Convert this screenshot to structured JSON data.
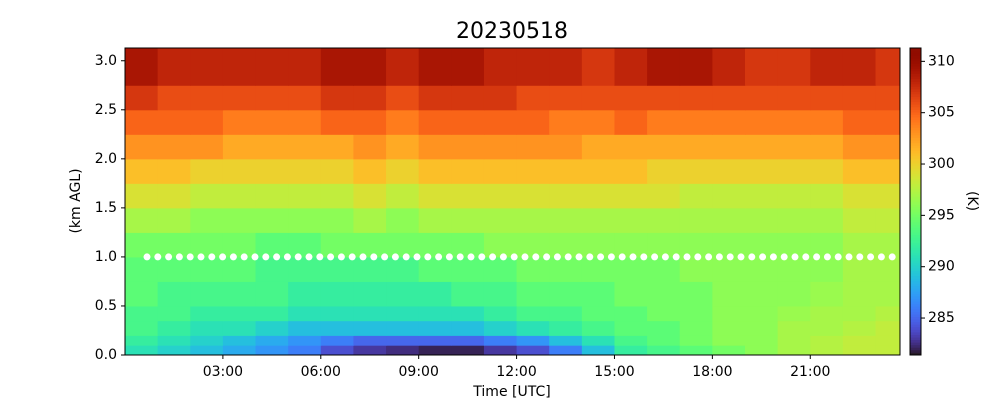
{
  "chart_data": {
    "type": "heatmap",
    "title": "20230518",
    "x_label": "Time [UTC]",
    "y_label": "(km AGL)",
    "colorbar_label": "(K)",
    "colormap": "turbo",
    "x_bins": [
      0,
      1,
      2,
      3,
      4,
      5,
      6,
      7,
      8,
      9,
      10,
      11,
      12,
      13,
      14,
      15,
      16,
      17,
      18,
      19,
      20,
      21,
      22,
      23,
      23.75
    ],
    "y_bins": [
      0,
      0.1,
      0.2,
      0.35,
      0.5,
      0.75,
      1.0,
      1.25,
      1.5,
      1.75,
      2.0,
      2.25,
      2.5,
      2.75,
      3.13
    ],
    "z": [
      [
        291,
        290,
        289,
        288,
        287,
        286,
        284,
        283,
        282.5,
        282,
        282,
        283,
        284,
        286,
        289,
        292,
        293,
        294,
        295,
        296,
        297,
        297.5,
        298,
        298
      ],
      [
        292,
        291,
        290,
        289,
        288,
        287,
        286,
        285,
        285,
        285,
        285,
        286,
        287,
        289,
        291,
        293,
        294,
        295,
        296,
        296,
        297,
        297.5,
        298,
        298
      ],
      [
        293,
        292,
        291,
        291,
        290,
        289,
        289,
        289,
        289,
        289,
        289,
        290,
        291,
        292,
        293,
        294,
        294,
        295,
        296,
        296,
        297,
        297,
        297.5,
        298
      ],
      [
        293,
        293,
        292,
        292,
        292,
        291,
        291,
        291,
        291,
        291,
        291,
        292,
        293,
        293,
        294,
        294,
        295,
        295,
        296,
        296,
        296.5,
        297,
        297,
        297.5
      ],
      [
        294,
        293,
        293,
        293,
        293,
        292,
        292,
        292,
        292,
        292,
        293,
        293,
        294,
        294,
        294,
        295,
        295,
        295,
        296,
        296,
        296,
        296.5,
        297,
        297
      ],
      [
        294,
        294,
        294,
        294,
        293,
        293,
        293,
        293,
        293,
        294,
        294,
        294,
        295,
        295,
        295,
        295,
        295,
        296,
        296,
        296,
        296,
        296,
        297,
        297
      ],
      [
        295,
        295,
        295,
        295,
        294,
        294,
        295,
        295,
        295,
        295,
        295,
        296,
        296,
        296,
        296,
        296,
        296,
        296,
        296,
        296,
        296,
        296,
        297,
        297
      ],
      [
        297,
        297,
        296,
        296,
        296,
        296,
        296,
        297,
        296,
        297,
        297,
        297,
        297,
        297,
        297,
        297,
        297,
        297,
        297,
        297,
        297,
        297,
        298,
        298
      ],
      [
        299,
        299,
        298,
        298,
        298,
        298,
        298,
        299,
        298,
        299,
        299,
        299,
        299,
        299,
        299,
        299,
        299,
        298,
        298,
        298,
        298,
        298,
        299,
        299
      ],
      [
        301,
        301,
        300,
        300,
        300,
        300,
        300,
        301,
        300,
        301,
        301,
        301,
        301,
        301,
        301,
        301,
        300,
        300,
        300,
        300,
        300,
        300,
        301,
        301
      ],
      [
        303,
        303,
        303,
        302,
        302,
        302,
        302,
        303,
        302,
        303,
        303,
        303,
        303,
        303,
        302,
        302,
        302,
        302,
        302,
        302,
        302,
        302,
        303,
        303
      ],
      [
        305,
        305,
        305,
        304,
        304,
        304,
        305,
        305,
        304,
        305,
        305,
        305,
        305,
        304,
        304,
        305,
        304,
        304,
        304,
        304,
        304,
        304,
        305,
        305
      ],
      [
        307,
        306,
        306,
        306,
        306,
        306,
        307,
        307,
        306,
        307,
        307,
        307,
        306,
        306,
        306,
        306,
        306,
        306,
        306,
        306,
        306,
        306,
        306,
        306
      ],
      [
        309,
        308,
        308,
        308,
        308,
        308,
        309,
        309,
        308,
        309,
        309,
        308,
        308,
        308,
        307,
        308,
        309,
        309,
        308,
        307,
        307,
        308,
        308,
        307
      ]
    ],
    "xlim": [
      0,
      23.75
    ],
    "ylim": [
      0,
      3.13
    ],
    "clim": [
      281.4,
      311.3
    ],
    "xticks": [
      {
        "value": 3,
        "label": "03:00"
      },
      {
        "value": 6,
        "label": "06:00"
      },
      {
        "value": 9,
        "label": "09:00"
      },
      {
        "value": 12,
        "label": "12:00"
      },
      {
        "value": 15,
        "label": "15:00"
      },
      {
        "value": 18,
        "label": "18:00"
      },
      {
        "value": 21,
        "label": "21:00"
      }
    ],
    "yticks": [
      {
        "value": 0,
        "label": "0.0"
      },
      0.5,
      {
        "value": 1,
        "label": "1.0"
      },
      1.5,
      {
        "value": 2,
        "label": "2.0"
      },
      2.5,
      {
        "value": 3,
        "label": "3.0"
      }
    ],
    "cticks": [
      285,
      290,
      295,
      300,
      305,
      310
    ],
    "hline": 1.0
  }
}
